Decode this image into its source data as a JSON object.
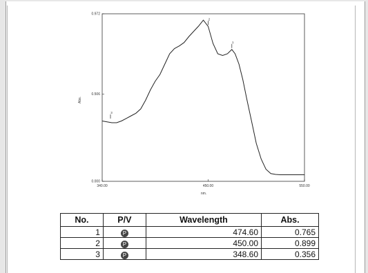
{
  "chart_data": {
    "type": "line",
    "xlabel": "nm.",
    "ylabel": "Abs.",
    "xlim": [
      340.0,
      550.0
    ],
    "ylim": [
      0.0,
      0.972
    ],
    "x_ticks": [
      "340.00",
      "450.00",
      "550.00"
    ],
    "y_ticks": [
      "0.000",
      "0.506",
      "0.972"
    ],
    "series": [
      {
        "x": [
          340,
          345,
          350,
          355,
          360,
          365,
          370,
          375,
          380,
          385,
          390,
          395,
          400,
          405,
          410,
          415,
          420,
          425,
          430,
          435,
          440,
          445,
          450,
          455,
          460,
          465,
          470,
          474.6,
          478,
          482,
          486,
          490,
          495,
          500,
          505,
          510,
          515,
          520,
          525,
          530,
          535,
          540,
          545,
          550
        ],
        "y": [
          0.35,
          0.345,
          0.34,
          0.34,
          0.35,
          0.365,
          0.38,
          0.395,
          0.42,
          0.47,
          0.53,
          0.58,
          0.62,
          0.68,
          0.74,
          0.77,
          0.785,
          0.805,
          0.84,
          0.87,
          0.9,
          0.935,
          0.899,
          0.8,
          0.74,
          0.73,
          0.74,
          0.765,
          0.74,
          0.68,
          0.59,
          0.48,
          0.35,
          0.22,
          0.13,
          0.07,
          0.045,
          0.04,
          0.038,
          0.038,
          0.038,
          0.038,
          0.038,
          0.038
        ]
      }
    ],
    "peak_markers": [
      {
        "label": "1",
        "x": 474.6,
        "y": 0.765
      },
      {
        "label": "2",
        "x": 450.0,
        "y": 0.899
      },
      {
        "label": "3",
        "x": 348.6,
        "y": 0.356
      }
    ]
  },
  "table": {
    "headers": [
      "No.",
      "P/V",
      "Wavelength",
      "Abs."
    ],
    "rows": [
      {
        "no": "1",
        "pv": "P",
        "wavelength": "474.60",
        "abs": "0.765"
      },
      {
        "no": "2",
        "pv": "P",
        "wavelength": "450.00",
        "abs": "0.899"
      },
      {
        "no": "3",
        "pv": "P",
        "wavelength": "348.60",
        "abs": "0.356"
      }
    ]
  }
}
